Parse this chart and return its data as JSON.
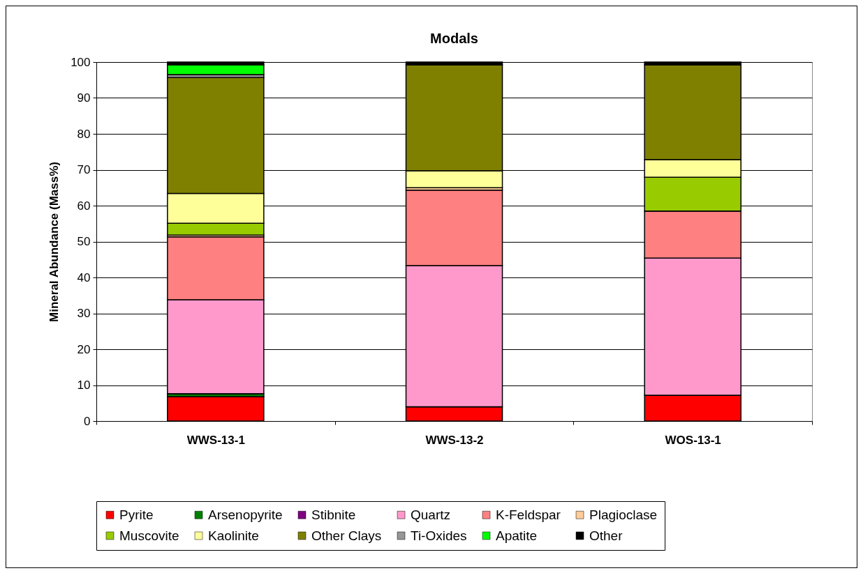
{
  "chart_data": {
    "type": "bar",
    "stacked": true,
    "title": "Modals",
    "ylabel": "Mineral Abundance (Mass%)",
    "categories": [
      "WWS-13-1",
      "WWS-13-2",
      "WOS-13-1"
    ],
    "ylim": [
      0,
      100
    ],
    "yticks": [
      0,
      10,
      20,
      30,
      40,
      50,
      60,
      70,
      80,
      90,
      100
    ],
    "grid": "y",
    "legend": "bottom",
    "series": [
      {
        "name": "Pyrite",
        "color": "#ff0000",
        "values": [
          6.8,
          4.0,
          7.2
        ]
      },
      {
        "name": "Arsenopyrite",
        "color": "#008000",
        "values": [
          0.8,
          0,
          0
        ]
      },
      {
        "name": "Stibnite",
        "color": "#800080",
        "values": [
          0,
          0,
          0
        ]
      },
      {
        "name": "Quartz",
        "color": "#ff99cc",
        "values": [
          26.2,
          39.3,
          38.2
        ]
      },
      {
        "name": "K-Feldspar",
        "color": "#ff8080",
        "values": [
          17.5,
          21.0,
          13.1
        ]
      },
      {
        "name": "Plagioclase",
        "color": "#ffcc99",
        "values": [
          0.5,
          0.7,
          0
        ]
      },
      {
        "name": "Muscovite",
        "color": "#99cc00",
        "values": [
          3.3,
          0,
          9.4
        ]
      },
      {
        "name": "Kaolinite",
        "color": "#ffff99",
        "values": [
          8.3,
          4.7,
          4.9
        ]
      },
      {
        "name": "Other Clays",
        "color": "#808000",
        "values": [
          32.3,
          29.5,
          26.4
        ]
      },
      {
        "name": "Ti-Oxides",
        "color": "#969696",
        "values": [
          0.8,
          0,
          0
        ]
      },
      {
        "name": "Apatite",
        "color": "#00ff00",
        "values": [
          2.7,
          0,
          0
        ]
      },
      {
        "name": "Other",
        "color": "#000000",
        "values": [
          0.8,
          0.8,
          0.8
        ]
      }
    ]
  }
}
